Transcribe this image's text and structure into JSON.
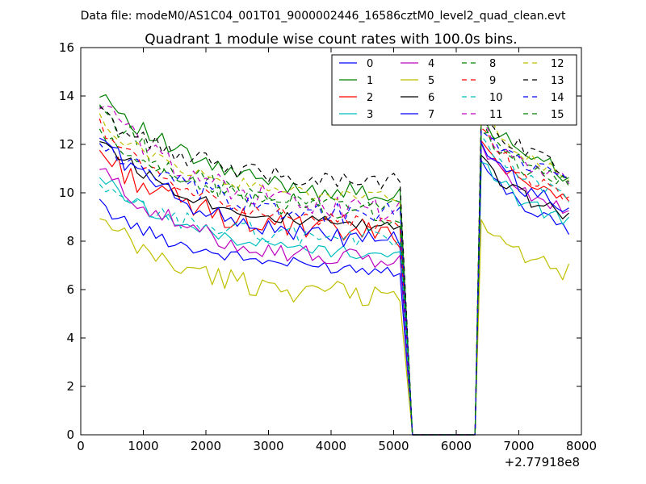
{
  "chart_data": {
    "type": "line",
    "suptitle": "Data file: modeM0/AS1C04_001T01_9000002446_16586cztM0_level2_quad_clean.evt",
    "title": "Quadrant 1 module wise count rates with 100.0s bins.",
    "xlabel": "",
    "ylabel": "",
    "xlim": [
      0,
      8000
    ],
    "ylim": [
      0,
      16
    ],
    "x_offset_label": "+2.77918e8",
    "x_ticks": [
      0,
      1000,
      2000,
      3000,
      4000,
      5000,
      6000,
      7000,
      8000
    ],
    "y_ticks": [
      0,
      2,
      4,
      6,
      8,
      10,
      12,
      14,
      16
    ],
    "legend_position": "top-right",
    "legend_columns": 4,
    "segments": [
      {
        "x_start": 300,
        "x_end": 5100,
        "step": 100
      },
      {
        "x_start": 5300,
        "x_end": 6300,
        "step": 100
      },
      {
        "x_start": 6400,
        "x_end": 7800,
        "step": 100
      }
    ],
    "series": [
      {
        "name": "0",
        "color": "#0000ff",
        "dash": "solid",
        "seg1": [
          9.5,
          6.7
        ],
        "seg3": [
          11.2,
          7.9
        ]
      },
      {
        "name": "1",
        "color": "#008000",
        "dash": "solid",
        "seg1": [
          14.3,
          9.7
        ],
        "seg3": [
          13.2,
          10.2
        ]
      },
      {
        "name": "2",
        "color": "#ff0000",
        "dash": "solid",
        "seg1": [
          11.7,
          8.1
        ],
        "seg3": [
          12.2,
          9.1
        ]
      },
      {
        "name": "3",
        "color": "#00bfbf",
        "dash": "solid",
        "seg1": [
          10.7,
          7.3
        ],
        "seg3": [
          11.5,
          8.0
        ]
      },
      {
        "name": "4",
        "color": "#bf00bf",
        "dash": "solid",
        "seg1": [
          11.0,
          7.0
        ],
        "seg3": [
          12.0,
          8.5
        ]
      },
      {
        "name": "5",
        "color": "#bfbf00",
        "dash": "solid",
        "seg1": [
          8.8,
          5.6
        ],
        "seg3": [
          8.5,
          6.3
        ]
      },
      {
        "name": "6",
        "color": "#000000",
        "dash": "solid",
        "seg1": [
          12.3,
          8.4
        ],
        "seg3": [
          11.3,
          8.6
        ]
      },
      {
        "name": "7",
        "color": "#0000ff",
        "dash": "solid",
        "seg1": [
          12.4,
          7.8
        ],
        "seg3": [
          12.1,
          8.6
        ]
      },
      {
        "name": "8",
        "color": "#008000",
        "dash": "dashed",
        "seg1": [
          13.6,
          8.9
        ],
        "seg3": [
          13.0,
          9.7
        ]
      },
      {
        "name": "9",
        "color": "#ff0000",
        "dash": "dashed",
        "seg1": [
          12.8,
          8.5
        ],
        "seg3": [
          12.6,
          9.4
        ]
      },
      {
        "name": "10",
        "color": "#00bfbf",
        "dash": "dashed",
        "seg1": [
          10.1,
          8.0
        ],
        "seg3": [
          12.1,
          9.3
        ]
      },
      {
        "name": "11",
        "color": "#bf00bf",
        "dash": "dashed",
        "seg1": [
          13.8,
          9.0
        ],
        "seg3": [
          12.9,
          9.7
        ]
      },
      {
        "name": "12",
        "color": "#bfbf00",
        "dash": "dashed",
        "seg1": [
          13.0,
          9.6
        ],
        "seg3": [
          13.6,
          9.9
        ]
      },
      {
        "name": "13",
        "color": "#000000",
        "dash": "dashed",
        "seg1": [
          13.3,
          10.3
        ],
        "seg3": [
          13.3,
          10.4
        ]
      },
      {
        "name": "14",
        "color": "#0000ff",
        "dash": "dashed",
        "seg1": [
          12.1,
          8.9
        ],
        "seg3": [
          12.4,
          10.2
        ]
      },
      {
        "name": "15",
        "color": "#008000",
        "dash": "dashed",
        "seg1": [
          12.4,
          9.3
        ],
        "seg3": [
          12.6,
          9.8
        ]
      }
    ]
  }
}
